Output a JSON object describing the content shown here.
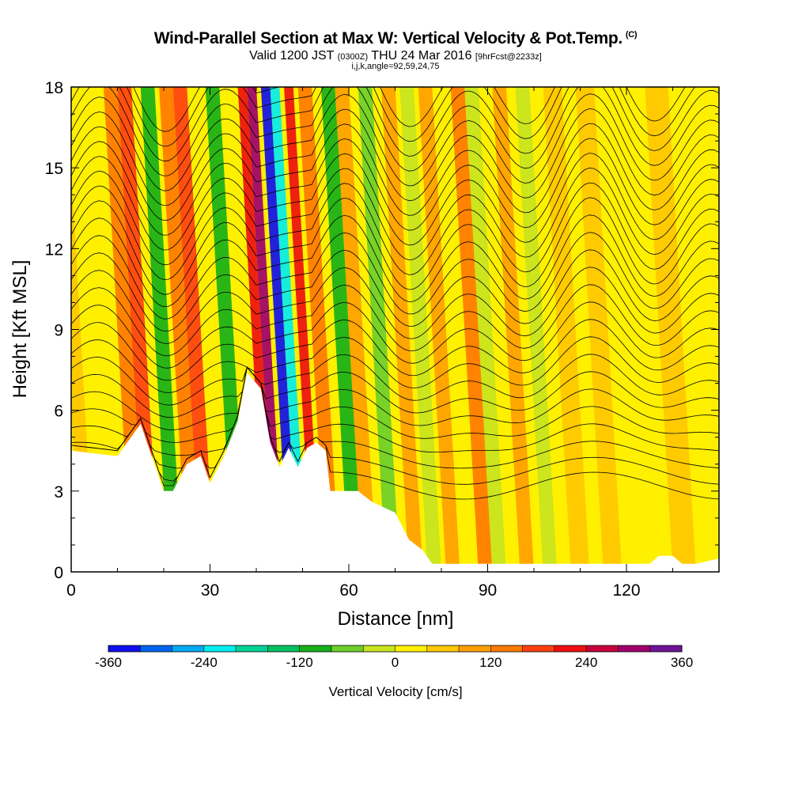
{
  "title": {
    "main": "Wind-Parallel Section at Max W: Vertical Velocity & Pot.Temp.",
    "copyright": "(C)",
    "valid_prefix": "Valid 1200 JST",
    "utc": "(0300Z)",
    "valid_date": "THU 24 Mar 2016",
    "forecast": "[9hrFcst@2233z]",
    "section_params": "i,j,k,angle=92,59,24,75"
  },
  "chart_data": {
    "type": "heatmap",
    "xlabel": "Distance [nm]",
    "ylabel": "Height [Kft MSL]",
    "xlim": [
      0,
      140
    ],
    "ylim": [
      0,
      18
    ],
    "x_ticks": [
      0,
      30,
      60,
      90,
      120
    ],
    "y_ticks": [
      0,
      3,
      6,
      9,
      12,
      15,
      18
    ],
    "colorbar": {
      "title": "Vertical Velocity [cm/s]",
      "min": -360,
      "max": 360,
      "step": 40,
      "tick_values": [
        -360,
        -240,
        -120,
        0,
        120,
        240,
        360
      ],
      "tick_labels": [
        "-360",
        "-240",
        "-120",
        "0",
        "120",
        "240",
        "360"
      ],
      "colors": [
        "#1010ee",
        "#0064f0",
        "#00aaf5",
        "#00eeee",
        "#00d296",
        "#00c060",
        "#18b018",
        "#6ccf2a",
        "#c8e41e",
        "#fff000",
        "#ffc800",
        "#ffa000",
        "#ff7a00",
        "#ff4010",
        "#ee1010",
        "#c8003c",
        "#a0006c",
        "#6e1496"
      ]
    },
    "terrain_kft": [
      [
        0,
        4.5
      ],
      [
        10,
        4.3
      ],
      [
        15,
        5.5
      ],
      [
        18,
        4.0
      ],
      [
        20,
        3.0
      ],
      [
        22,
        3.0
      ],
      [
        25,
        4.0
      ],
      [
        28,
        4.3
      ],
      [
        30,
        3.3
      ],
      [
        33,
        4.3
      ],
      [
        36,
        5.6
      ],
      [
        38,
        7.4
      ],
      [
        41,
        6.8
      ],
      [
        43,
        4.8
      ],
      [
        45,
        3.9
      ],
      [
        47,
        4.6
      ],
      [
        49,
        3.9
      ],
      [
        51,
        4.6
      ],
      [
        53,
        4.8
      ],
      [
        55,
        4.5
      ],
      [
        56,
        3.0
      ],
      [
        62,
        3.0
      ],
      [
        65,
        2.6
      ],
      [
        70,
        2.2
      ],
      [
        73,
        1.2
      ],
      [
        76,
        0.8
      ],
      [
        78,
        0.3
      ],
      [
        90,
        0.3
      ],
      [
        100,
        0.3
      ],
      [
        110,
        0.3
      ],
      [
        118,
        0.3
      ],
      [
        125,
        0.3
      ],
      [
        127,
        0.6
      ],
      [
        130,
        0.6
      ],
      [
        132,
        0.3
      ],
      [
        135,
        0.3
      ],
      [
        140,
        0.5
      ]
    ],
    "vertical_velocity_bands": [
      {
        "x": 2,
        "width": 3,
        "value": 40
      },
      {
        "x": 7,
        "width": 5,
        "value": 0
      },
      {
        "x": 13,
        "width": 3,
        "value": 120
      },
      {
        "x": 16,
        "width": 3,
        "value": 160
      },
      {
        "x": 21,
        "width": 3,
        "value": -120
      },
      {
        "x": 25,
        "width": 3,
        "value": 120
      },
      {
        "x": 28,
        "width": 3,
        "value": 160
      },
      {
        "x": 35,
        "width": 3,
        "value": -120
      },
      {
        "x": 42,
        "width": 2,
        "value": 200
      },
      {
        "x": 44,
        "width": 2,
        "value": 280
      },
      {
        "x": 47,
        "width": 2,
        "value": -360
      },
      {
        "x": 49,
        "width": 2,
        "value": -240
      },
      {
        "x": 52,
        "width": 2,
        "value": 200
      },
      {
        "x": 55,
        "width": 3,
        "value": 120
      },
      {
        "x": 60,
        "width": 3,
        "value": -120
      },
      {
        "x": 63,
        "width": 3,
        "value": 80
      },
      {
        "x": 68,
        "width": 3,
        "value": -80
      },
      {
        "x": 73,
        "width": 3,
        "value": 80
      },
      {
        "x": 77,
        "width": 3,
        "value": -40
      },
      {
        "x": 81,
        "width": 3,
        "value": 80
      },
      {
        "x": 88,
        "width": 3,
        "value": 120
      },
      {
        "x": 91,
        "width": 3,
        "value": -40
      },
      {
        "x": 97,
        "width": 3,
        "value": 80
      },
      {
        "x": 102,
        "width": 3,
        "value": -40
      },
      {
        "x": 108,
        "width": 4,
        "value": 40
      },
      {
        "x": 115,
        "width": 4,
        "value": 40
      },
      {
        "x": 122,
        "width": 5,
        "value": 0
      },
      {
        "x": 130,
        "width": 5,
        "value": 40
      },
      {
        "x": 136,
        "width": 3,
        "value": 0
      }
    ],
    "theta_contour_spacing_kft": 0.55,
    "theta_contour_base_kft": 3.2
  }
}
